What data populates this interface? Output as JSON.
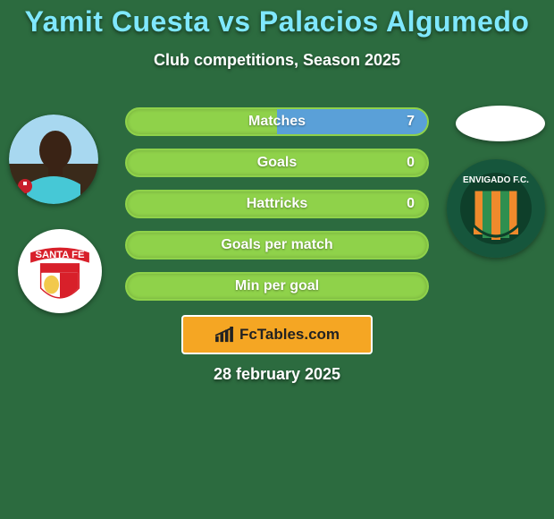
{
  "background_color": "#2c6b3f",
  "title": {
    "player1": "Yamit Cuesta",
    "vs": "vs",
    "player2": "Palacios Algumedo",
    "color": "#7fe8ff",
    "fontsize": 32
  },
  "subtitle": "Club competitions, Season 2025",
  "stats": {
    "bar_bg": "#8fd24a",
    "bar_border": "#2c6b3f",
    "label_color": "#ffffff",
    "value_color": "#ffffff",
    "rows": [
      {
        "label": "Matches",
        "left": "",
        "right": "7",
        "left_pct": 0,
        "right_pct": 100
      },
      {
        "label": "Goals",
        "left": "",
        "right": "0",
        "left_pct": 0,
        "right_pct": 0
      },
      {
        "label": "Hattricks",
        "left": "",
        "right": "0",
        "left_pct": 0,
        "right_pct": 0
      },
      {
        "label": "Goals per match",
        "left": "",
        "right": "",
        "left_pct": 0,
        "right_pct": 0
      },
      {
        "label": "Min per goal",
        "left": "",
        "right": "",
        "left_pct": 0,
        "right_pct": 0
      }
    ],
    "fill_color_left": "#5aa0d8",
    "fill_color_right": "#5aa0d8"
  },
  "player_left": {
    "photo_bg_top": "#a8d8f0",
    "photo_bg_bottom": "#3a2a1a",
    "skin": "#3a2315",
    "shirt": "#46c8d6"
  },
  "player_right": {
    "placeholder_bg": "#ffffff"
  },
  "club_left": {
    "name": "SANTA FE",
    "bg": "#ffffff",
    "accent": "#d8202a",
    "text_color": "#d8202a"
  },
  "club_right": {
    "name": "ENVIGADO F.C.",
    "ring": "#16563c",
    "stripe1": "#f08a2c",
    "stripe2": "#2f8f4f",
    "text_color": "#ffffff"
  },
  "fctables": {
    "label": "FcTables.com",
    "bg": "#f5a623",
    "icon_color": "#222222",
    "text_color": "#222222",
    "border_color": "#ffffff"
  },
  "date": "28 february 2025"
}
